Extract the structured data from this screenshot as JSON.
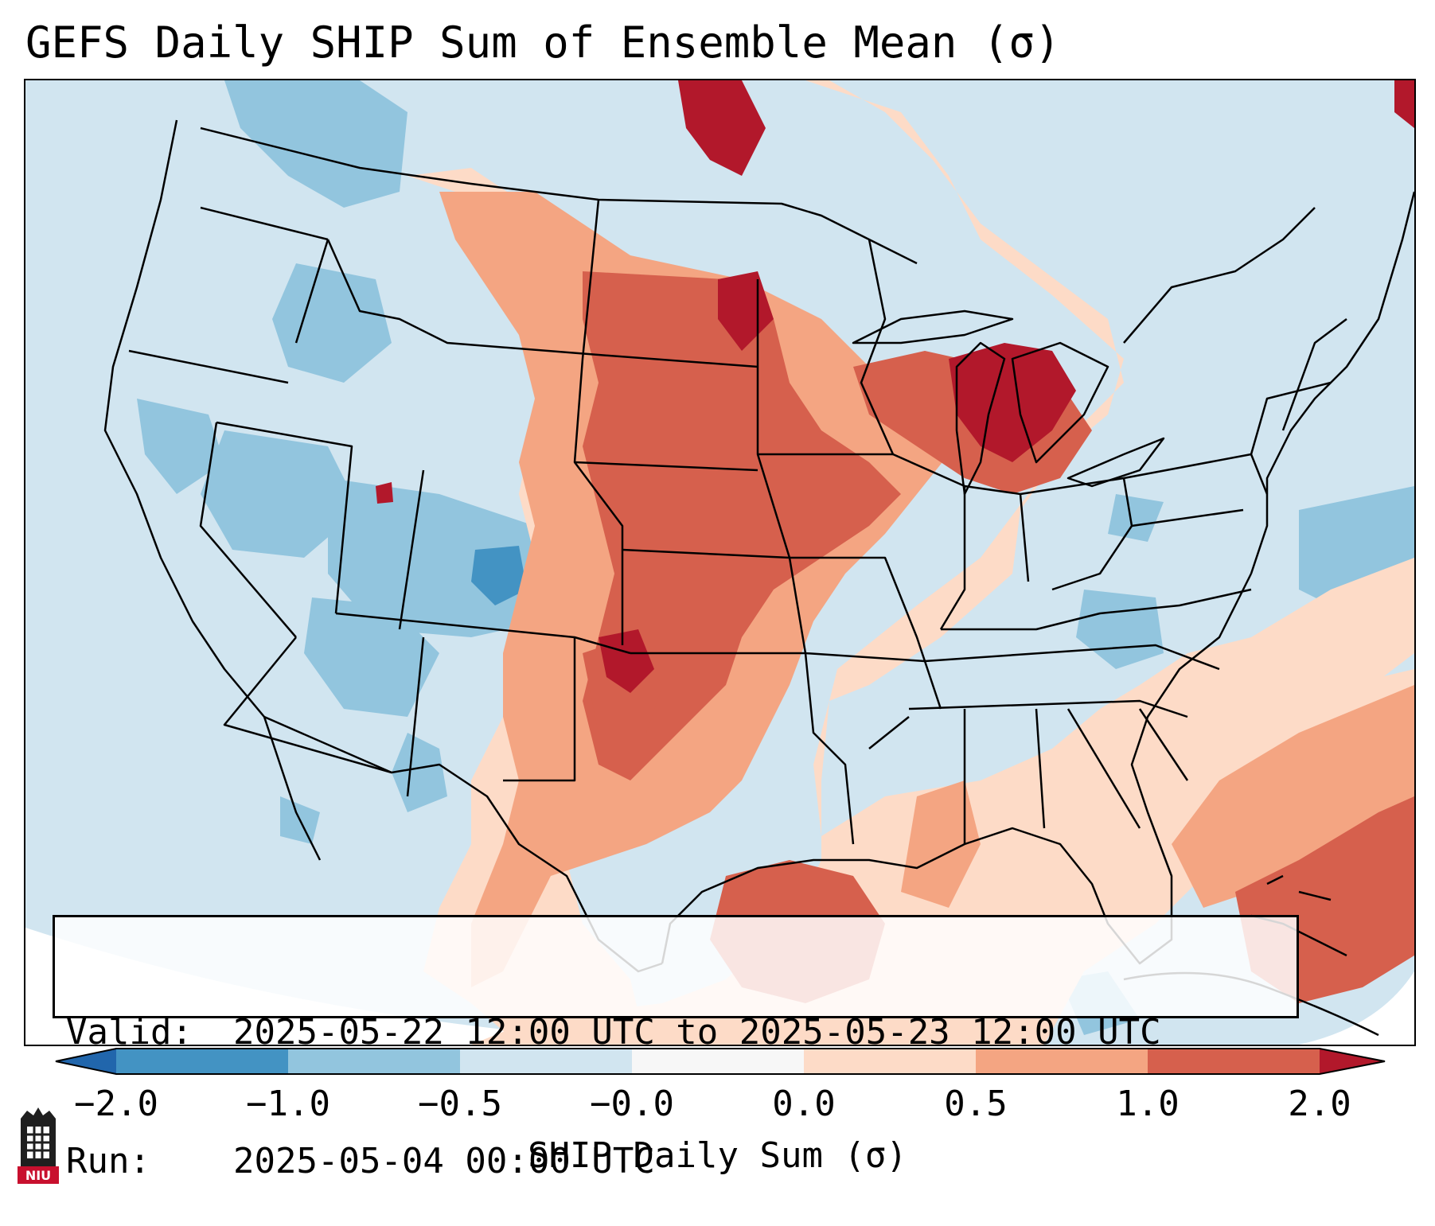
{
  "title": "GEFS Daily SHIP Sum of Ensemble Mean (σ)",
  "map": {
    "region": "Contiguous United States",
    "colors": {
      "neg_2": "#4393c3",
      "neg_1": "#92c5de",
      "neg_05": "#d1e5f0",
      "pos_0": "#fddbc7",
      "pos_05": "#f4a582",
      "pos_1": "#d6604d",
      "pos_2": "#b2182b",
      "boundaries": "#000000"
    }
  },
  "info": {
    "valid_label": "Valid:",
    "valid_value": "2025-05-22 12:00 UTC to 2025-05-23 12:00 UTC",
    "run_label": "Run:",
    "run_value": "2025-05-04 00:00 UTC"
  },
  "colorbar": {
    "label": "SHIP Daily Sum (σ)",
    "ticks": [
      "−2.0",
      "−1.0",
      "−0.5",
      "−0.0",
      "0.0",
      "0.5",
      "1.0",
      "2.0"
    ],
    "extend": "both"
  },
  "logo": {
    "text": "NIU",
    "color": "#c8102e"
  }
}
